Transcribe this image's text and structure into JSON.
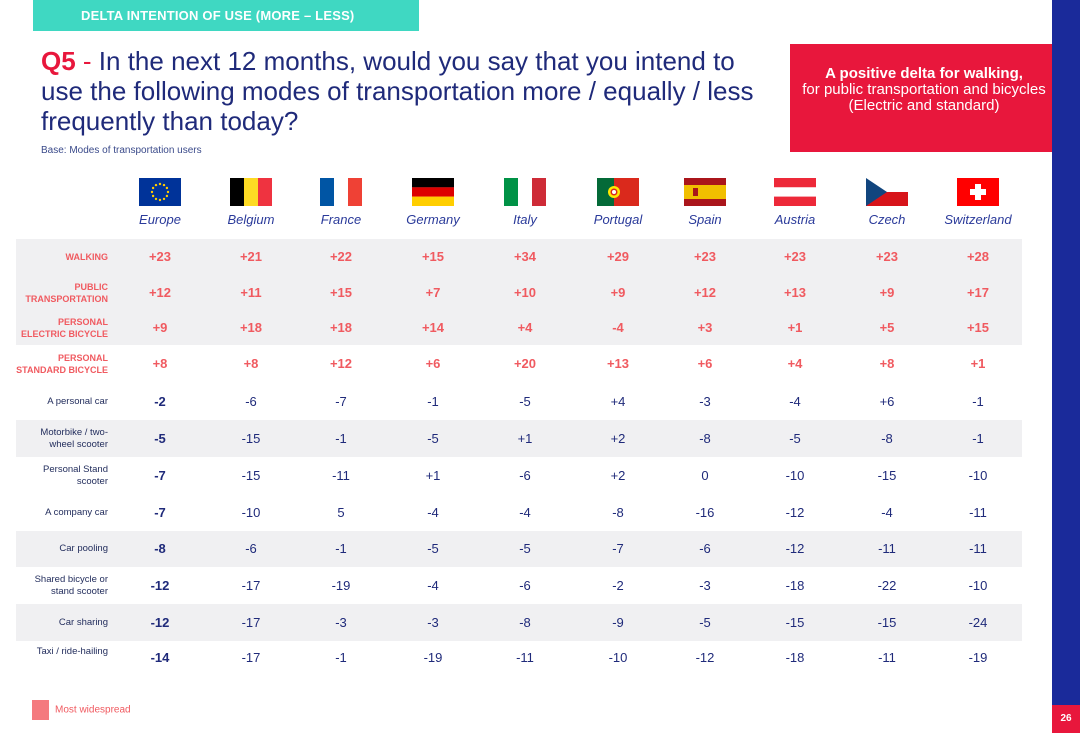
{
  "banner": {
    "label": "DELTA INTENTION OF USE (MORE – LESS)"
  },
  "question": {
    "number": "Q5",
    "dash": " - ",
    "text": "In the next 12 months, would you say that you intend to use the following modes of transportation more / equally / less frequently than today?"
  },
  "base_note": "Base: Modes of transportation users",
  "callout": {
    "headline": "A positive delta for walking,",
    "body": "for public transportation and bicycles (Electric and standard)"
  },
  "countries": [
    "Europe",
    "Belgium",
    "France",
    "Germany",
    "Italy",
    "Portugal",
    "Spain",
    "Austria",
    "Czech",
    "Switzerland"
  ],
  "flag_icons": [
    "eu-flag-icon",
    "belgium-flag-icon",
    "france-flag-icon",
    "germany-flag-icon",
    "italy-flag-icon",
    "portugal-flag-icon",
    "spain-flag-icon",
    "austria-flag-icon",
    "czech-flag-icon",
    "switzerland-flag-icon"
  ],
  "rows": [
    {
      "label": "WALKING",
      "highlight": true,
      "values": [
        "+23",
        "+21",
        "+22",
        "+15",
        "+34",
        "+29",
        "+23",
        "+23",
        "+23",
        "+28"
      ]
    },
    {
      "label": "PUBLIC TRANSPORTATION",
      "highlight": true,
      "values": [
        "+12",
        "+11",
        "+15",
        "+7",
        "+10",
        "+9",
        "+12",
        "+13",
        "+9",
        "+17"
      ]
    },
    {
      "label": "PERSONAL ELECTRIC BICYCLE",
      "highlight": true,
      "values": [
        "+9",
        "+18",
        "+18",
        "+14",
        "+4",
        "-4",
        "+3",
        "+1",
        "+5",
        "+15"
      ]
    },
    {
      "label": "PERSONAL STANDARD BICYCLE",
      "highlight": true,
      "values": [
        "+8",
        "+8",
        "+12",
        "+6",
        "+20",
        "+13",
        "+6",
        "+4",
        "+8",
        "+1"
      ]
    },
    {
      "label": "A personal car",
      "highlight": false,
      "values": [
        "-2",
        "-6",
        "-7",
        "-1",
        "-5",
        "+4",
        "-3",
        "-4",
        "+6",
        "-1"
      ]
    },
    {
      "label": "Motorbike / two-wheel scooter",
      "highlight": false,
      "values": [
        "-5",
        "-15",
        "-1",
        "-5",
        "+1",
        "+2",
        "-8",
        "-5",
        "-8",
        "-1"
      ]
    },
    {
      "label": "Personal Stand scooter",
      "highlight": false,
      "values": [
        "-7",
        "-15",
        "-11",
        "+1",
        "-6",
        "+2",
        "0",
        "-10",
        "-15",
        "-10"
      ]
    },
    {
      "label": "A company car",
      "highlight": false,
      "values": [
        "-7",
        "-10",
        "5",
        "-4",
        "-4",
        "-8",
        "-16",
        "-12",
        "-4",
        "-11"
      ]
    },
    {
      "label": "Car pooling",
      "highlight": false,
      "values": [
        "-8",
        "-6",
        "-1",
        "-5",
        "-5",
        "-7",
        "-6",
        "-12",
        "-11",
        "-11"
      ]
    },
    {
      "label": "Shared bicycle or stand scooter",
      "highlight": false,
      "values": [
        "-12",
        "-17",
        "-19",
        "-4",
        "-6",
        "-2",
        "-3",
        "-18",
        "-22",
        "-10"
      ]
    },
    {
      "label": "Car sharing",
      "highlight": false,
      "values": [
        "-12",
        "-17",
        "-3",
        "-3",
        "-8",
        "-9",
        "-5",
        "-15",
        "-15",
        "-24"
      ]
    },
    {
      "label": "Taxi / ride-hailing",
      "highlight": false,
      "values": [
        "-14",
        "-17",
        "-1",
        "-19",
        "-11",
        "-10",
        "-12",
        "-18",
        "-11",
        "-19"
      ]
    }
  ],
  "legend": {
    "label": "Most widespread"
  },
  "page_number": "26",
  "colors": {
    "highlight": "#f05a60",
    "accent_red": "#e8173c",
    "navy": "#1f2a7a",
    "teal": "#3fd8c2"
  }
}
